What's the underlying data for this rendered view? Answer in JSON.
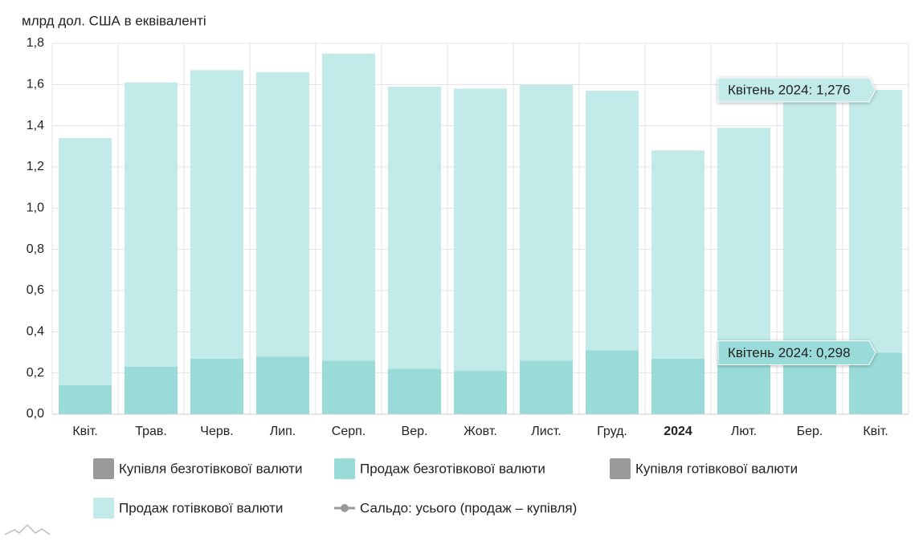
{
  "chart_data": {
    "type": "bar",
    "stacked": true,
    "y_label": "млрд дол. США в еквіваленті",
    "categories": [
      "Квіт.",
      "Трав.",
      "Черв.",
      "Лип.",
      "Серп.",
      "Вер.",
      "Жовт.",
      "Лист.",
      "Груд.",
      "2024",
      "Лют.",
      "Бер.",
      "Квіт."
    ],
    "bold": [
      false,
      false,
      false,
      false,
      false,
      false,
      false,
      false,
      false,
      true,
      false,
      false,
      false
    ],
    "series": [
      {
        "name": "Купівля безготівкової валюти",
        "color": "#999999",
        "hidden": true,
        "symbol": "square"
      },
      {
        "name": "Продаж безготівкової валюти",
        "color": "#98dbd8",
        "symbol": "square",
        "values": [
          0.14,
          0.23,
          0.27,
          0.28,
          0.26,
          0.22,
          0.21,
          0.26,
          0.31,
          0.27,
          0.27,
          0.28,
          0.298
        ]
      },
      {
        "name": "Купівля готівкової валюти",
        "color": "#999999",
        "hidden": true,
        "symbol": "square"
      },
      {
        "name": "Продаж готівкової валюти",
        "color": "#c2eae9",
        "symbol": "square",
        "values": [
          1.2,
          1.38,
          1.4,
          1.38,
          1.49,
          1.37,
          1.37,
          1.34,
          1.26,
          1.01,
          1.12,
          1.27,
          1.276
        ]
      },
      {
        "name": "Сальдо: усього (продаж – купівля)",
        "color": "#999999",
        "hidden": true,
        "symbol": "line"
      }
    ],
    "tooltips": [
      "Квітень 2024: 1,276",
      "Квітень 2024: 0,298"
    ],
    "ylim": [
      0,
      1.8
    ],
    "yticks": [
      {
        "value": 0,
        "label": "0,0"
      },
      {
        "value": 0.2,
        "label": "0,2"
      },
      {
        "value": 0.4,
        "label": "0,4"
      },
      {
        "value": 0.6,
        "label": "0,6"
      },
      {
        "value": 0.8,
        "label": "0,8"
      },
      {
        "value": 1,
        "label": "1,0"
      },
      {
        "value": 1.2,
        "label": "1,2"
      },
      {
        "value": 1.4,
        "label": "1,4"
      },
      {
        "value": 1.6,
        "label": "1,6"
      },
      {
        "value": 1.8,
        "label": "1,8"
      }
    ],
    "grid": true
  }
}
